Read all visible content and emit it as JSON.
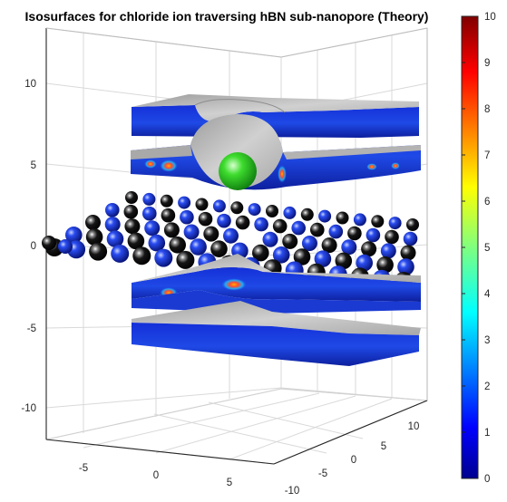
{
  "chart_data": {
    "type": "3d-isosurface",
    "title": "Isosurfaces for chloride ion traversing hBN sub-nanopore (Theory)",
    "xlabel": "",
    "ylabel": "",
    "zlabel": "",
    "x_ticks": [
      "-5",
      "0",
      "5"
    ],
    "y_ticks": [
      "-10",
      "-5",
      "0",
      "5",
      "10"
    ],
    "z_ticks": [
      "10",
      "5",
      "0",
      "-5",
      "-10"
    ],
    "xlim": [
      -9,
      9
    ],
    "ylim": [
      -10,
      10
    ],
    "zlim": [
      -10,
      10
    ],
    "grid": true,
    "colormap": "jet",
    "colorbar": {
      "min": 0,
      "max": 10,
      "ticks": [
        "10",
        "9",
        "8",
        "7",
        "6",
        "5",
        "4",
        "3",
        "2",
        "1",
        "0"
      ]
    },
    "layers": [
      {
        "name": "upper isosurface slab",
        "z": 7.5
      },
      {
        "name": "upper isosurface slab (bulged around ion)",
        "z": 4.5
      },
      {
        "name": "hBN monolayer",
        "z": 0
      },
      {
        "name": "lower isosurface slab",
        "z": -3.5
      },
      {
        "name": "lower isosurface slab",
        "z": -6.5
      }
    ],
    "ion": {
      "species": "Cl-",
      "position": [
        0,
        0,
        5
      ],
      "color": "#22c322"
    },
    "atom_colors": {
      "boron": "#101010",
      "nitrogen": "#1a36e0"
    },
    "colors": {
      "surface": "#bfbfbf",
      "slab_side": "#1f3fd0",
      "hot": "#f0b400"
    }
  }
}
